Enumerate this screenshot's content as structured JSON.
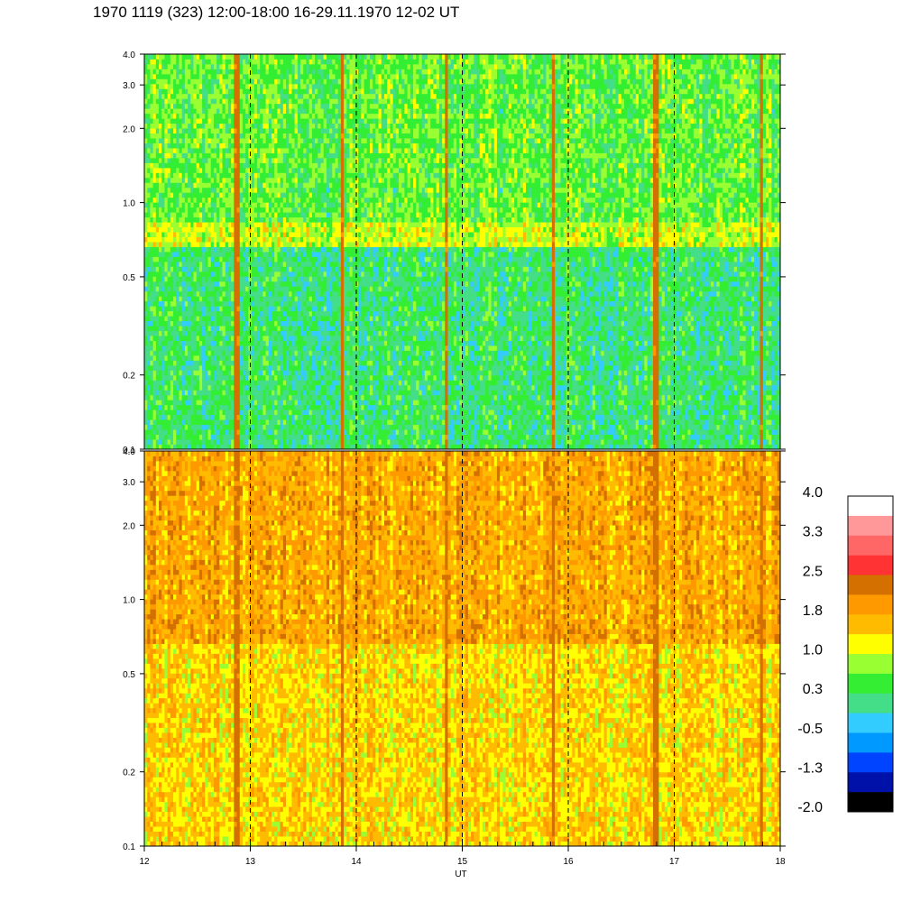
{
  "header": {
    "title": "1970 1119 (323) 12:00-18:00 16-29.11.1970  12-02 UT"
  },
  "chart_data": {
    "type": "heatmap",
    "title": "1970 1119 (323) 12:00-18:00 16-29.11.1970  12-02 UT",
    "xlabel": "UT",
    "ylabel": "",
    "x_range": [
      12,
      18
    ],
    "x_ticks": [
      "12",
      "13",
      "14",
      "15",
      "16",
      "17",
      "18"
    ],
    "y_scale": "log",
    "y_range": [
      0.1,
      4.0
    ],
    "y_ticks": [
      {
        "value": 0.1,
        "label": "0.1"
      },
      {
        "value": 0.2,
        "label": "0.2"
      },
      {
        "value": 0.5,
        "label": "0.5"
      },
      {
        "value": 1.0,
        "label": "1.0"
      },
      {
        "value": 2.0,
        "label": "2.0"
      },
      {
        "value": 3.0,
        "label": "3.0"
      },
      {
        "value": 4.0,
        "label": "4.0"
      }
    ],
    "hour_markers": [
      13,
      14,
      15,
      16,
      17
    ],
    "bursts": [
      12.87,
      13.87,
      14.85,
      15.85,
      16.83,
      17.82
    ],
    "band": {
      "low": 0.65,
      "high": 0.85
    },
    "panels": [
      {
        "name": "",
        "base_level": 0.2,
        "band_level": 1.0
      },
      {
        "name": "",
        "base_level": 1.4,
        "band_level": 1.8
      }
    ],
    "colorbar": {
      "labels": [
        "4.0",
        "3.3",
        "2.5",
        "1.8",
        "1.0",
        "0.3",
        "-0.5",
        "-1.3",
        "-2.0"
      ],
      "colors": [
        "#ffffff",
        "#ff9999",
        "#ff6666",
        "#ff3333",
        "#d47000",
        "#ff9900",
        "#ffbb00",
        "#ffff00",
        "#99ff33",
        "#33ee33",
        "#44dd88",
        "#33ccff",
        "#0099ff",
        "#0044ff",
        "#0011aa",
        "#000000"
      ]
    },
    "grid": false,
    "legend": "right"
  }
}
